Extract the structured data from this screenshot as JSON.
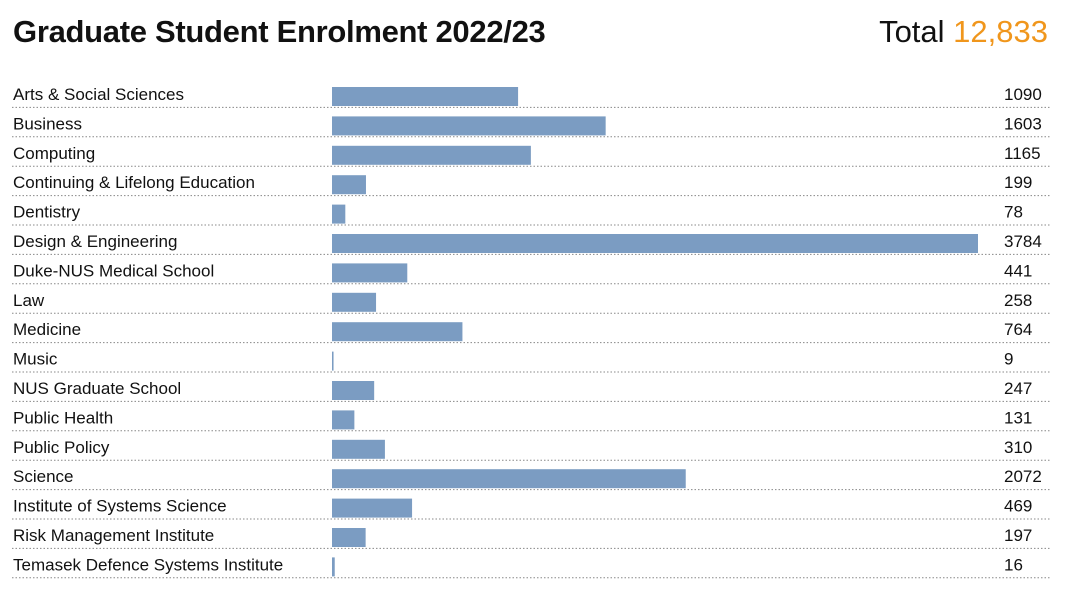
{
  "header": {
    "title": "Graduate Student Enrolment 2022/23",
    "total_label": "Total",
    "total_value": "12,833"
  },
  "colors": {
    "bar": "#7b9cc2",
    "accent": "#f0961c",
    "separator": "#888888"
  },
  "chart_data": {
    "type": "bar",
    "orientation": "horizontal",
    "title": "Graduate Student Enrolment 2022/23",
    "total": 12833,
    "xlim": [
      0,
      3784
    ],
    "grid": false,
    "categories": [
      "Arts & Social Sciences",
      "Business",
      "Computing",
      "Continuing & Lifelong Education",
      "Dentistry",
      "Design & Engineering",
      "Duke-NUS Medical School",
      "Law",
      "Medicine",
      "Music",
      "NUS Graduate School",
      "Public Health",
      "Public Policy",
      "Science",
      "Institute of Systems Science",
      "Risk Management Institute",
      "Temasek Defence Systems Institute"
    ],
    "values": [
      1090,
      1603,
      1165,
      199,
      78,
      3784,
      441,
      258,
      764,
      9,
      247,
      131,
      310,
      2072,
      469,
      197,
      16
    ]
  }
}
